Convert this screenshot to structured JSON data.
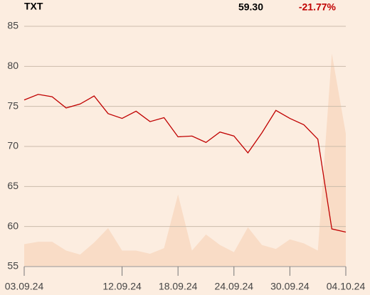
{
  "chart_data": {
    "type": "line",
    "title": "TXT",
    "price": "59.30",
    "change": "-21.77%",
    "categories": [
      "03.09.24",
      null,
      null,
      null,
      null,
      null,
      null,
      "12.09.24",
      null,
      null,
      null,
      "18.09.24",
      null,
      null,
      null,
      "24.09.24",
      null,
      null,
      null,
      "30.09.24",
      null,
      null,
      null,
      "04.10.24"
    ],
    "series": [
      {
        "type": "area",
        "color": "#f9dcc6",
        "values": [
          57.8,
          58.1,
          58.1,
          57.0,
          56.5,
          58.0,
          59.8,
          57.0,
          57.0,
          56.6,
          57.3,
          64.0,
          57.0,
          59.0,
          57.7,
          56.8,
          59.9,
          57.7,
          57.2,
          58.4,
          57.9,
          57.0,
          81.6,
          71.6
        ]
      },
      {
        "type": "line",
        "color": "#c00000",
        "values": [
          75.8,
          76.5,
          76.2,
          74.8,
          75.3,
          76.3,
          74.1,
          73.5,
          74.4,
          73.1,
          73.6,
          71.2,
          71.3,
          70.5,
          71.8,
          71.3,
          69.2,
          71.7,
          74.5,
          73.5,
          72.7,
          70.9,
          59.7,
          59.3
        ]
      }
    ],
    "ylim": [
      55,
      85
    ],
    "yticks": [
      55,
      60,
      65,
      70,
      75,
      80,
      85
    ],
    "grid": true
  }
}
